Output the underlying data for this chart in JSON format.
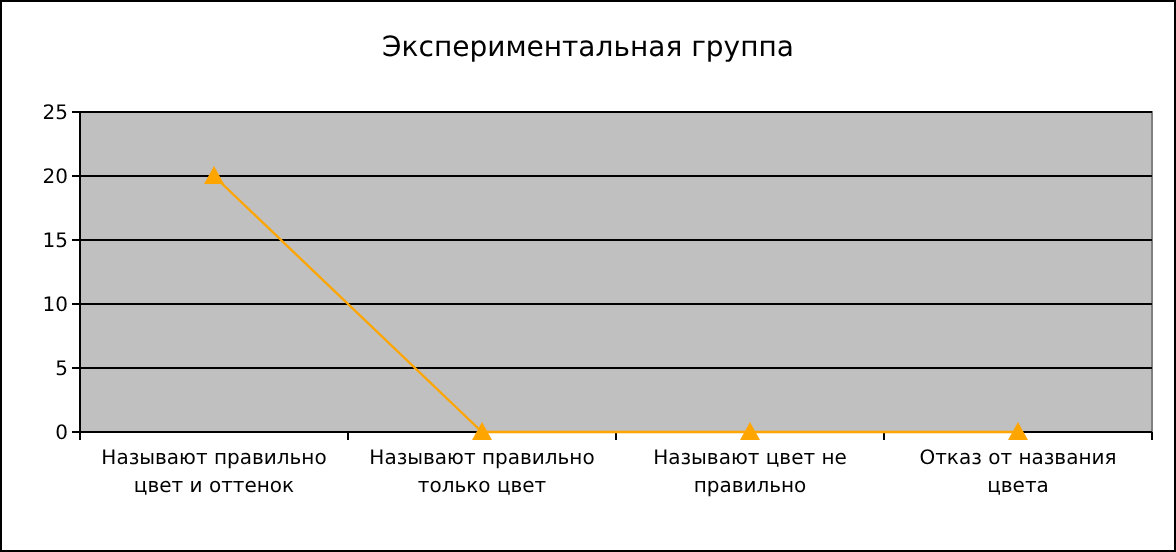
{
  "chart_data": {
    "type": "line",
    "title": "Экспериментальная группа",
    "categories": [
      "Называют правильно цвет и оттенок",
      "Называют правильно только цвет",
      "Называют цвет не правильно",
      "Отказ от названия цвета"
    ],
    "series": [
      {
        "color": "#ffa500",
        "values": [
          20,
          0,
          0,
          0
        ]
      }
    ],
    "ylim": [
      0,
      25
    ],
    "yticks": [
      0,
      5,
      10,
      15,
      20,
      25
    ],
    "grid": "y",
    "marker": "triangle"
  }
}
